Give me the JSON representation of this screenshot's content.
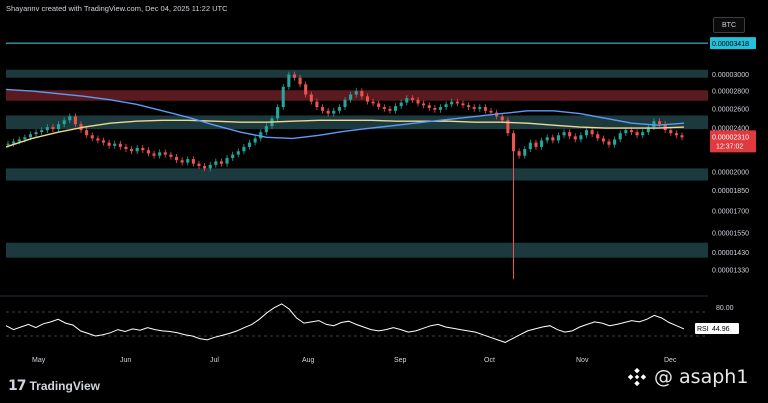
{
  "header": {
    "text": "Shayannv created with TradingView.com, Dec 04, 2025 11:22 UTC"
  },
  "symbol_button": {
    "label": "BTC"
  },
  "footer": {
    "logo_text": "TradingView",
    "logo_icon": "tradingview-logo-icon"
  },
  "watermark": {
    "text": "@ asaph1",
    "icon": "binance-diamond-icon"
  },
  "colors": {
    "background": "#000000",
    "up_candle": "#26a69a",
    "down_candle": "#ef5350",
    "ma_fast": "#5b9cf6",
    "ma_slow": "#f2d98d",
    "resistance_line": "#4dd0e1",
    "zone_teal": "#1c3a3d",
    "zone_red": "#5a1a1f",
    "rsi_line": "#ffffff"
  },
  "chart_data": {
    "type": "candlestick",
    "x": [
      "May",
      "Jun",
      "Jul",
      "Aug",
      "Sep",
      "Oct",
      "Nov",
      "Dec"
    ],
    "y_ticks": [
      "0.00003000",
      "0.00002800",
      "0.00002600",
      "0.00002400",
      "0.00002000",
      "0.00001850",
      "0.00001700",
      "0.00001550",
      "0.00001430",
      "0.00001330"
    ],
    "price_scale": "log",
    "resistance_level": {
      "label": "0.00003418",
      "value": 3.418e-05
    },
    "current_price": {
      "label": "0.00002310",
      "countdown": "12:37:02",
      "value": 2.31e-05
    },
    "wick_low": 1.28e-05,
    "zones": [
      {
        "kind": "teal",
        "from": 2.96e-05,
        "to": 3.06e-05
      },
      {
        "kind": "red",
        "from": 2.69e-05,
        "to": 2.81e-05
      },
      {
        "kind": "teal",
        "from": 2.39e-05,
        "to": 2.53e-05
      },
      {
        "kind": "teal",
        "from": 1.93e-05,
        "to": 2.03e-05
      },
      {
        "kind": "teal",
        "from": 1.4e-05,
        "to": 1.49e-05
      }
    ],
    "candles_close": [
      2.25e-05,
      2.27e-05,
      2.29e-05,
      2.31e-05,
      2.34e-05,
      2.36e-05,
      2.38e-05,
      2.41e-05,
      2.39e-05,
      2.44e-05,
      2.48e-05,
      2.52e-05,
      2.44e-05,
      2.38e-05,
      2.33e-05,
      2.3e-05,
      2.28e-05,
      2.26e-05,
      2.23e-05,
      2.25e-05,
      2.22e-05,
      2.2e-05,
      2.18e-05,
      2.21e-05,
      2.19e-05,
      2.16e-05,
      2.14e-05,
      2.17e-05,
      2.15e-05,
      2.13e-05,
      2.1e-05,
      2.08e-05,
      2.11e-05,
      2.07e-05,
      2.05e-05,
      2.03e-05,
      2.06e-05,
      2.09e-05,
      2.07e-05,
      2.12e-05,
      2.15e-05,
      2.18e-05,
      2.22e-05,
      2.26e-05,
      2.3e-05,
      2.36e-05,
      2.42e-05,
      2.5e-05,
      2.62e-05,
      2.85e-05,
      3e-05,
      2.96e-05,
      2.88e-05,
      2.76e-05,
      2.68e-05,
      2.62e-05,
      2.58e-05,
      2.55e-05,
      2.58e-05,
      2.62e-05,
      2.7e-05,
      2.76e-05,
      2.8e-05,
      2.74e-05,
      2.68e-05,
      2.66e-05,
      2.62e-05,
      2.6e-05,
      2.58e-05,
      2.63e-05,
      2.67e-05,
      2.72e-05,
      2.7e-05,
      2.66e-05,
      2.64e-05,
      2.61e-05,
      2.59e-05,
      2.62e-05,
      2.65e-05,
      2.68e-05,
      2.66e-05,
      2.64e-05,
      2.62e-05,
      2.6e-05,
      2.62e-05,
      2.58e-05,
      2.56e-05,
      2.52e-05,
      2.48e-05,
      2.35e-05,
      2.18e-05,
      2.14e-05,
      2.2e-05,
      2.26e-05,
      2.22e-05,
      2.28e-05,
      2.31e-05,
      2.28e-05,
      2.33e-05,
      2.36e-05,
      2.32e-05,
      2.29e-05,
      2.33e-05,
      2.38e-05,
      2.34e-05,
      2.3e-05,
      2.27e-05,
      2.24e-05,
      2.29e-05,
      2.35e-05,
      2.38e-05,
      2.36e-05,
      2.33e-05,
      2.36e-05,
      2.41e-05,
      2.47e-05,
      2.44e-05,
      2.38e-05,
      2.35e-05,
      2.33e-05,
      2.31e-05
    ],
    "ma_fast_values": [
      2.82e-05,
      2.8e-05,
      2.77e-05,
      2.74e-05,
      2.7e-05,
      2.65e-05,
      2.58e-05,
      2.51e-05,
      2.43e-05,
      2.36e-05,
      2.31e-05,
      2.3e-05,
      2.33e-05,
      2.37e-05,
      2.4e-05,
      2.43e-05,
      2.46e-05,
      2.49e-05,
      2.52e-05,
      2.55e-05,
      2.58e-05,
      2.58e-05,
      2.55e-05,
      2.5e-05,
      2.45e-05,
      2.43e-05,
      2.45e-05
    ],
    "ma_slow_values": [
      2.22e-05,
      2.3e-05,
      2.36e-05,
      2.41e-05,
      2.45e-05,
      2.47e-05,
      2.48e-05,
      2.48e-05,
      2.47e-05,
      2.46e-05,
      2.46e-05,
      2.47e-05,
      2.48e-05,
      2.48e-05,
      2.48e-05,
      2.47e-05,
      2.47e-05,
      2.47e-05,
      2.46e-05,
      2.46e-05,
      2.45e-05,
      2.43e-05,
      2.41e-05,
      2.4e-05,
      2.4e-05,
      2.4e-05,
      2.41e-05
    ],
    "rsi": {
      "label": "RSI",
      "value_label": "44.96",
      "level_label": "80.00",
      "upper_level": 70,
      "lower_level": 30,
      "values": [
        50,
        44,
        48,
        52,
        47,
        53,
        56,
        60,
        54,
        51,
        42,
        38,
        34,
        36,
        39,
        44,
        41,
        45,
        43,
        47,
        44,
        42,
        41,
        39,
        36,
        34,
        30,
        28,
        32,
        35,
        38,
        42,
        47,
        52,
        60,
        70,
        78,
        84,
        76,
        62,
        54,
        56,
        58,
        52,
        50,
        55,
        57,
        52,
        48,
        44,
        42,
        44,
        47,
        44,
        40,
        42,
        46,
        50,
        52,
        48,
        46,
        44,
        42,
        40,
        36,
        32,
        28,
        24,
        30,
        36,
        42,
        45,
        48,
        50,
        44,
        40,
        42,
        48,
        52,
        56,
        54,
        50,
        52,
        55,
        58,
        56,
        60,
        66,
        62,
        55,
        50,
        45
      ]
    }
  }
}
